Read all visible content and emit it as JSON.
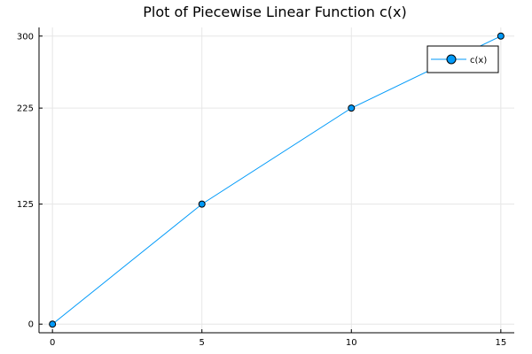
{
  "chart_data": {
    "type": "line",
    "title": "Plot of Piecewise Linear Function c(x)",
    "xlabel": "",
    "ylabel": "",
    "x": [
      0,
      5,
      10,
      15
    ],
    "series": [
      {
        "name": "c(x)",
        "values": [
          0,
          125,
          225,
          300
        ],
        "color": "#009AF9",
        "marker": "circle"
      }
    ],
    "xticks": [
      0,
      5,
      10,
      15
    ],
    "yticks": [
      0,
      125,
      225,
      300
    ],
    "xlim": [
      -0.45,
      15.45
    ],
    "ylim": [
      -9,
      309
    ],
    "grid": true,
    "legend_position": "top-right"
  }
}
